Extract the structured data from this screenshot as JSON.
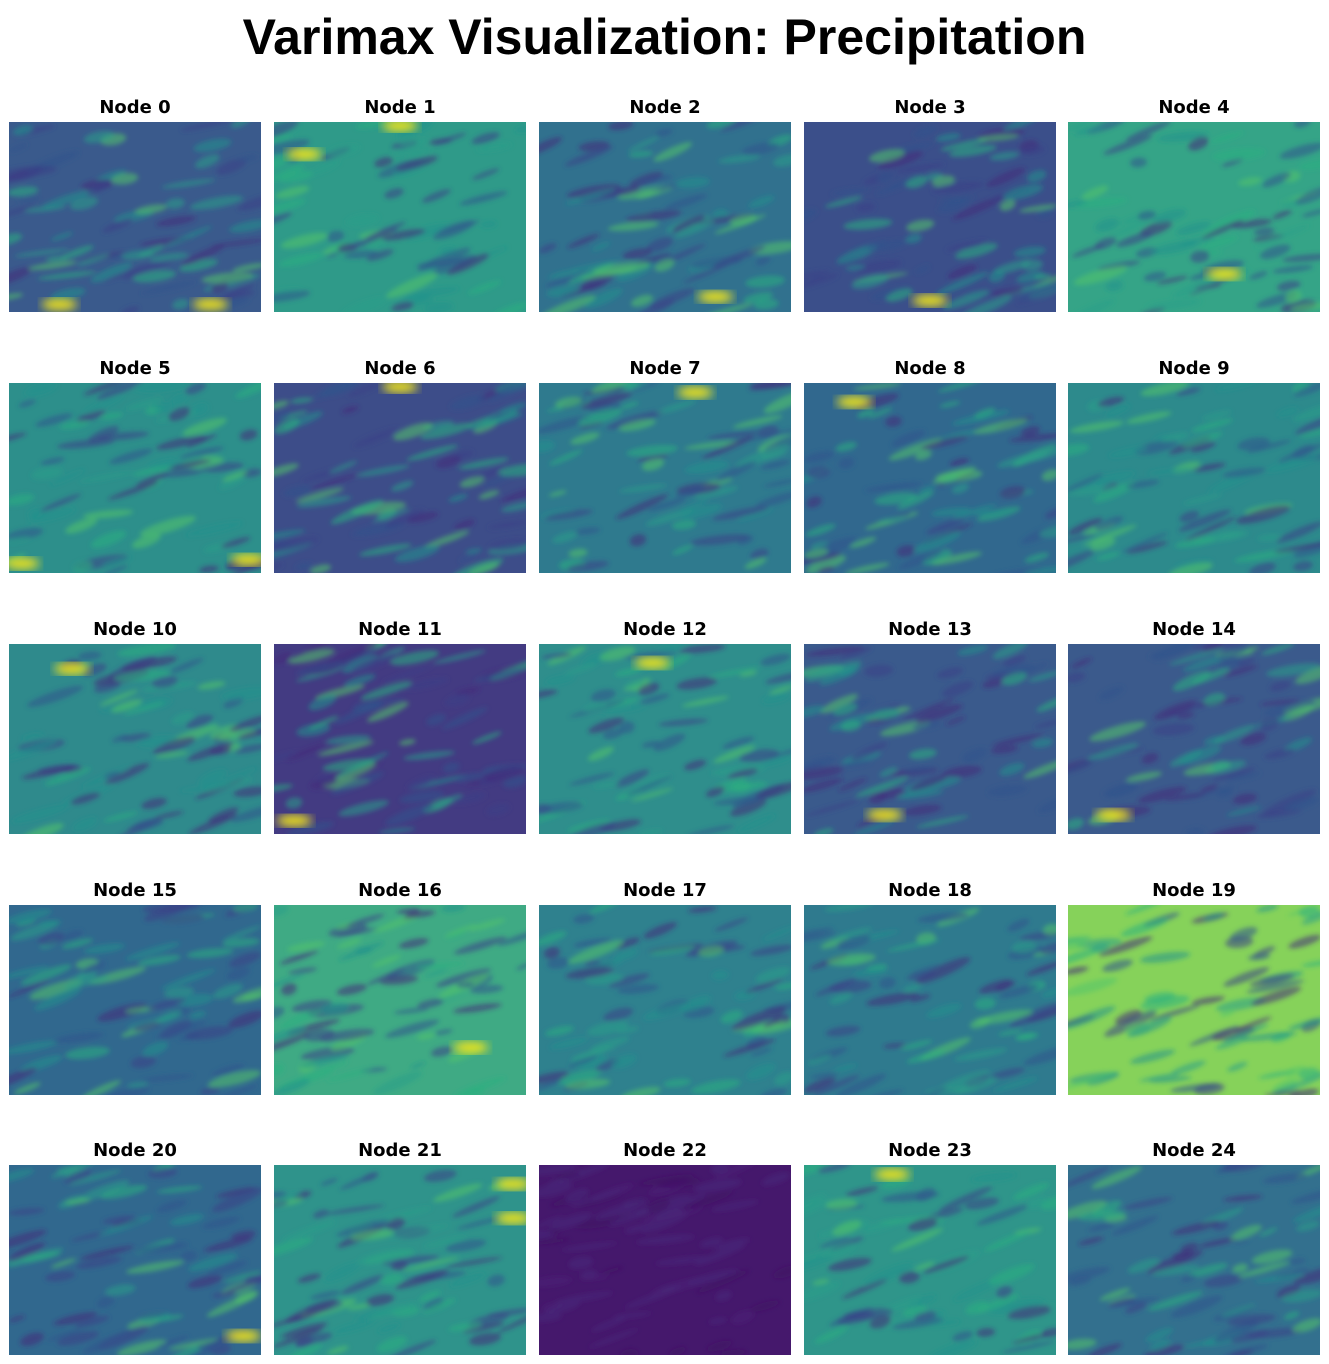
{
  "title": "Varimax Visualization: Precipitation",
  "nodes": [
    {
      "label": "Node 0"
    },
    {
      "label": "Node 1"
    },
    {
      "label": "Node 2"
    },
    {
      "label": "Node 3"
    },
    {
      "label": "Node 4"
    },
    {
      "label": "Node 5"
    },
    {
      "label": "Node 6"
    },
    {
      "label": "Node 7"
    },
    {
      "label": "Node 8"
    },
    {
      "label": "Node 9"
    },
    {
      "label": "Node 10"
    },
    {
      "label": "Node 11"
    },
    {
      "label": "Node 12"
    },
    {
      "label": "Node 13"
    },
    {
      "label": "Node 14"
    },
    {
      "label": "Node 15"
    },
    {
      "label": "Node 16"
    },
    {
      "label": "Node 17"
    },
    {
      "label": "Node 18"
    },
    {
      "label": "Node 19"
    },
    {
      "label": "Node 20"
    },
    {
      "label": "Node 21"
    },
    {
      "label": "Node 22"
    },
    {
      "label": "Node 23"
    },
    {
      "label": "Node 24"
    }
  ]
}
